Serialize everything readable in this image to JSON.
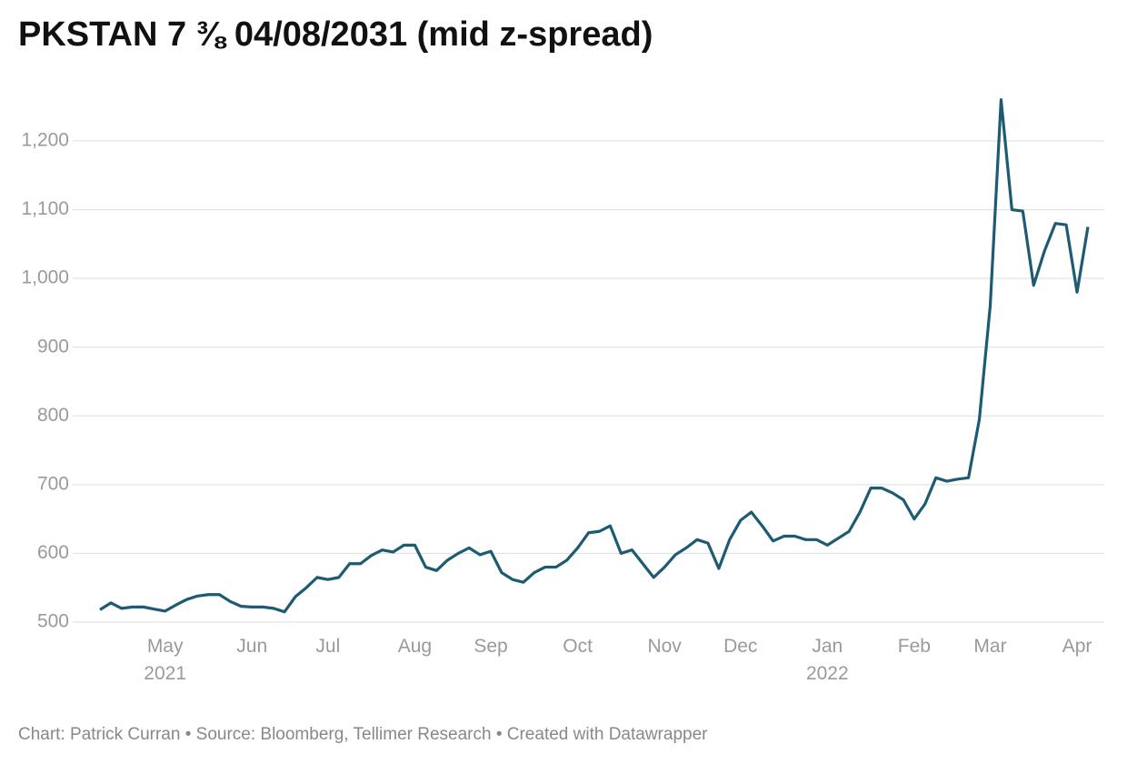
{
  "chart_data": {
    "type": "line",
    "title": "PKSTAN 7 ⅜ 04/08/2031 (mid z-spread)",
    "footer": "Chart: Patrick Curran • Source: Bloomberg, Tellimer Research • Created with Datawrapper",
    "categories": [
      null,
      null,
      null,
      null,
      null,
      null,
      "May 2021",
      null,
      null,
      null,
      null,
      null,
      null,
      null,
      "Jun",
      null,
      null,
      null,
      null,
      null,
      null,
      "Jul",
      null,
      null,
      null,
      null,
      null,
      null,
      null,
      "Aug",
      null,
      null,
      null,
      null,
      null,
      null,
      "Sep",
      null,
      null,
      null,
      null,
      null,
      null,
      null,
      "Oct",
      null,
      null,
      null,
      null,
      null,
      null,
      null,
      "Nov",
      null,
      null,
      null,
      null,
      null,
      null,
      "Dec",
      null,
      null,
      null,
      null,
      null,
      null,
      null,
      "Jan 2022",
      null,
      null,
      null,
      null,
      null,
      null,
      null,
      "Feb",
      null,
      null,
      null,
      null,
      null,
      null,
      "Mar",
      null,
      null,
      null,
      null,
      null,
      null,
      null,
      "Apr",
      null
    ],
    "series": [
      {
        "name": "mid z-spread",
        "color": "#1d5b73",
        "values": [
          518,
          528,
          520,
          522,
          522,
          519,
          516,
          525,
          533,
          538,
          540,
          540,
          530,
          523,
          522,
          522,
          520,
          515,
          537,
          550,
          565,
          562,
          565,
          585,
          585,
          597,
          605,
          602,
          612,
          612,
          580,
          575,
          590,
          600,
          608,
          598,
          603,
          572,
          562,
          558,
          572,
          580,
          580,
          590,
          608,
          630,
          632,
          640,
          600,
          605,
          585,
          565,
          580,
          598,
          608,
          620,
          615,
          578,
          620,
          648,
          660,
          640,
          618,
          625,
          625,
          620,
          620,
          612,
          622,
          632,
          660,
          695,
          695,
          688,
          678,
          650,
          672,
          710,
          705,
          708,
          710,
          795,
          960,
          1260,
          1100,
          1098,
          990,
          1040,
          1080,
          1078,
          980,
          1075
        ]
      }
    ],
    "ylim": [
      500,
      1200
    ],
    "yticks": [
      500,
      600,
      700,
      800,
      900,
      {
        "value": 1000,
        "label": "1,000"
      },
      {
        "value": 1100,
        "label": "1,100"
      },
      {
        "value": 1200,
        "label": "1,200"
      }
    ],
    "grid": true
  }
}
